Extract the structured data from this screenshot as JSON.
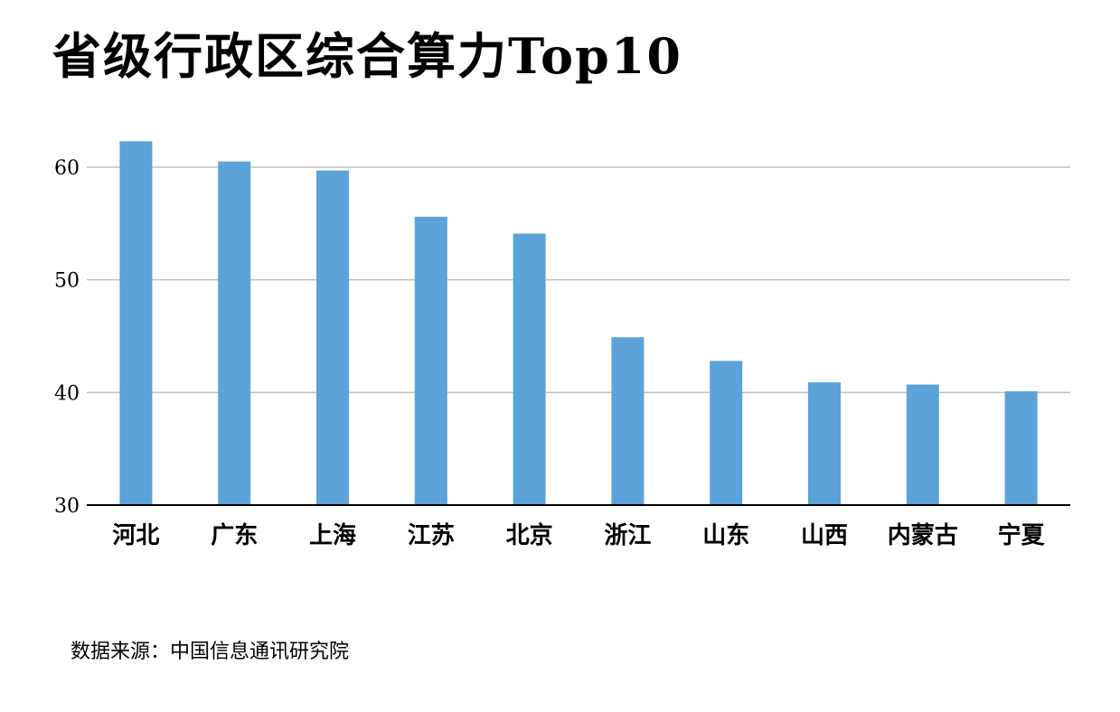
{
  "chart_data": {
    "type": "bar",
    "title": "省级行政区综合算力Top10",
    "categories": [
      "河北",
      "广东",
      "上海",
      "江苏",
      "北京",
      "浙江",
      "山东",
      "山西",
      "内蒙古",
      "宁夏"
    ],
    "values": [
      62.3,
      60.5,
      59.7,
      55.6,
      54.1,
      44.9,
      42.8,
      40.9,
      40.7,
      40.1
    ],
    "xlabel": "",
    "ylabel": "",
    "ylim": [
      30,
      63.2
    ],
    "yticks": [
      30,
      40,
      50,
      60
    ],
    "grid": true,
    "bar_color": "#5BA3D9",
    "grid_color": "#BFBFBF",
    "axis_color": "#000000"
  },
  "footer": {
    "source": "数据来源：中国信息通讯研究院"
  }
}
